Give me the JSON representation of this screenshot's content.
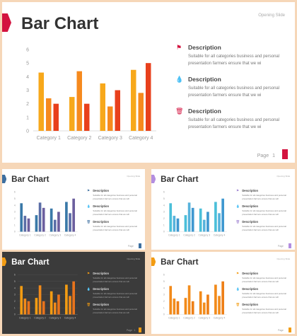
{
  "slides": [
    {
      "id": "main",
      "title": "Bar Chart",
      "top_right": "Opening Slide",
      "accent": "#d3133f",
      "page_label": "Page",
      "page_number": "1",
      "theme": "light",
      "series_colors": [
        "#f7a81b",
        "#f68a1e",
        "#e8401c"
      ],
      "descriptions": [
        {
          "icon": "flag-icon",
          "glyph": "⚑",
          "color": "#d3133f",
          "heading": "Description",
          "text": "Suitable for all categories business and personal presentation farmers ensure that we wi"
        },
        {
          "icon": "drops-icon",
          "glyph": "💧",
          "color": "#d3133f",
          "heading": "Description",
          "text": "Suitable for all categories business and personal presentation farmers ensure that we wi"
        },
        {
          "icon": "trash-icon",
          "glyph": "🗑",
          "color": "#d3133f",
          "heading": "Description",
          "text": "Suitable for all categories business and personal presentation farmers ensure that we wi"
        }
      ]
    },
    {
      "id": "blue",
      "title": "Bar Chart",
      "top_right": "Opening Slide",
      "accent": "#3d6fa0",
      "page_label": "Page",
      "page_number": "",
      "theme": "light",
      "series_colors": [
        "#3a79a8",
        "#5b6ea7",
        "#6c5f9e"
      ],
      "descriptions": [
        {
          "icon": "flag-icon",
          "glyph": "⚑",
          "color": "#3d6fa0",
          "heading": "Description",
          "text": "Suitable for all categories business and personal presentation farmers ensure that we will"
        },
        {
          "icon": "drops-icon",
          "glyph": "💧",
          "color": "#3d6fa0",
          "heading": "Description",
          "text": "Suitable for all categories business and personal presentation farmers ensure that we will"
        },
        {
          "icon": "trash-icon",
          "glyph": "🗑",
          "color": "#3d6fa0",
          "heading": "Description",
          "text": "Suitable for all categories business and personal presentation farmers ensure that we will"
        }
      ]
    },
    {
      "id": "cyan",
      "title": "Bar Chart",
      "top_right": "Opening Slide",
      "accent": "#b38ee0",
      "page_label": "Page",
      "page_number": "",
      "theme": "light",
      "series_colors": [
        "#4bbfd9",
        "#57b3dc",
        "#3f98d0"
      ],
      "descriptions": [
        {
          "icon": "flag-icon",
          "glyph": "⚑",
          "color": "#9c7fd0",
          "heading": "Description",
          "text": "Suitable for all categories business and personal presentation farmers ensure that we will"
        },
        {
          "icon": "drops-icon",
          "glyph": "💧",
          "color": "#9c7fd0",
          "heading": "Description",
          "text": "Suitable for all categories business and personal presentation farmers ensure that we will"
        },
        {
          "icon": "trash-icon",
          "glyph": "🗑",
          "color": "#9c7fd0",
          "heading": "Description",
          "text": "Suitable for all categories business and personal presentation farmers ensure that we will"
        }
      ]
    },
    {
      "id": "dark",
      "title": "Bar Chart",
      "top_right": "Opening Slide",
      "accent": "#f39c12",
      "page_label": "Page",
      "page_number": "1",
      "theme": "dark",
      "series_colors": [
        "#f39c12",
        "#f18a1a",
        "#e8731c"
      ],
      "descriptions": [
        {
          "icon": "flag-icon",
          "glyph": "⚑",
          "color": "#f39c12",
          "heading": "Description",
          "text": "Suitable for all categories business and personal presentation farmers ensure that we will"
        },
        {
          "icon": "drops-icon",
          "glyph": "💧",
          "color": "#f39c12",
          "heading": "Description",
          "text": "Suitable for all categories business and personal presentation farmers ensure that we will"
        },
        {
          "icon": "trash-icon",
          "glyph": "🗑",
          "color": "#f39c12",
          "heading": "Description",
          "text": "Suitable for all categories business and personal presentation farmers ensure that we will"
        }
      ]
    },
    {
      "id": "orange",
      "title": "Bar Chart",
      "top_right": "Opening Slide",
      "accent": "#f39c12",
      "page_label": "Page",
      "page_number": "",
      "theme": "light",
      "series_colors": [
        "#f28a1a",
        "#f38d1d",
        "#ee7f16"
      ],
      "descriptions": [
        {
          "icon": "flag-icon",
          "glyph": "⚑",
          "color": "#f39c12",
          "heading": "Description",
          "text": "Suitable for all categories business and personal presentation farmers ensure that we will"
        },
        {
          "icon": "drops-icon",
          "glyph": "💧",
          "color": "#f39c12",
          "heading": "Description",
          "text": "Suitable for all categories business and personal presentation farmers ensure that we will"
        },
        {
          "icon": "trash-icon",
          "glyph": "🗑",
          "color": "#f39c12",
          "heading": "Description",
          "text": "Suitable for all categories business and personal presentation farmers ensure that we will"
        }
      ]
    }
  ],
  "chart_data": [
    {
      "type": "bar",
      "categories": [
        "Category 1",
        "Category 2",
        "Category 3",
        "Category 4"
      ],
      "series": [
        {
          "values": [
            4.3,
            2.5,
            3.5,
            4.5
          ]
        },
        {
          "values": [
            2.4,
            4.4,
            1.8,
            2.8
          ]
        },
        {
          "values": [
            2.0,
            2.0,
            3.0,
            5.0
          ]
        }
      ],
      "yticks": [
        "0",
        "1",
        "2",
        "3",
        "4",
        "5",
        "6"
      ],
      "ylim": [
        0,
        6
      ],
      "grid": false,
      "legend": "none"
    },
    {
      "type": "bar",
      "categories": [
        "Category 1",
        "Category 2",
        "Category 3",
        "Category 4"
      ],
      "series": [
        {
          "values": [
            4.3,
            2.5,
            3.5,
            4.5
          ]
        },
        {
          "values": [
            2.4,
            4.4,
            1.8,
            2.8
          ]
        },
        {
          "values": [
            2.0,
            3.6,
            3.0,
            5.0
          ]
        }
      ],
      "yticks": [
        "0",
        "1",
        "2",
        "3",
        "4",
        "5",
        "6"
      ],
      "ylim": [
        0,
        6
      ],
      "grid": false,
      "legend": "none"
    },
    {
      "type": "bar",
      "categories": [
        "Category 1",
        "Category 2",
        "Category 3",
        "Category 4"
      ],
      "series": [
        {
          "values": [
            4.3,
            2.5,
            3.5,
            4.5
          ]
        },
        {
          "values": [
            2.4,
            4.4,
            1.8,
            2.8
          ]
        },
        {
          "values": [
            2.0,
            3.6,
            3.0,
            5.0
          ]
        }
      ],
      "yticks": [
        "0",
        "1",
        "2",
        "3",
        "4",
        "5",
        "6"
      ],
      "ylim": [
        0,
        6
      ],
      "grid": false,
      "legend": "none"
    },
    {
      "type": "bar",
      "categories": [
        "Category 1",
        "Category 2",
        "Category 3",
        "Category 4"
      ],
      "series": [
        {
          "values": [
            4.3,
            2.5,
            3.5,
            4.5
          ]
        },
        {
          "values": [
            2.4,
            4.4,
            1.8,
            2.8
          ]
        },
        {
          "values": [
            2.0,
            2.0,
            3.0,
            5.0
          ]
        }
      ],
      "yticks": [
        "0",
        "1",
        "2",
        "3",
        "4",
        "5",
        "6"
      ],
      "ylim": [
        0,
        6
      ],
      "grid": true,
      "legend": "none"
    },
    {
      "type": "bar",
      "categories": [
        "Category 1",
        "Category 2",
        "Category 3",
        "Category 4"
      ],
      "series": [
        {
          "values": [
            4.3,
            2.5,
            3.5,
            4.5
          ]
        },
        {
          "values": [
            2.4,
            4.4,
            1.8,
            2.8
          ]
        },
        {
          "values": [
            2.0,
            2.0,
            3.0,
            5.0
          ]
        }
      ],
      "yticks": [
        "0",
        "1",
        "2",
        "3",
        "4",
        "5",
        "6"
      ],
      "ylim": [
        0,
        6
      ],
      "grid": false,
      "legend": "none"
    }
  ]
}
